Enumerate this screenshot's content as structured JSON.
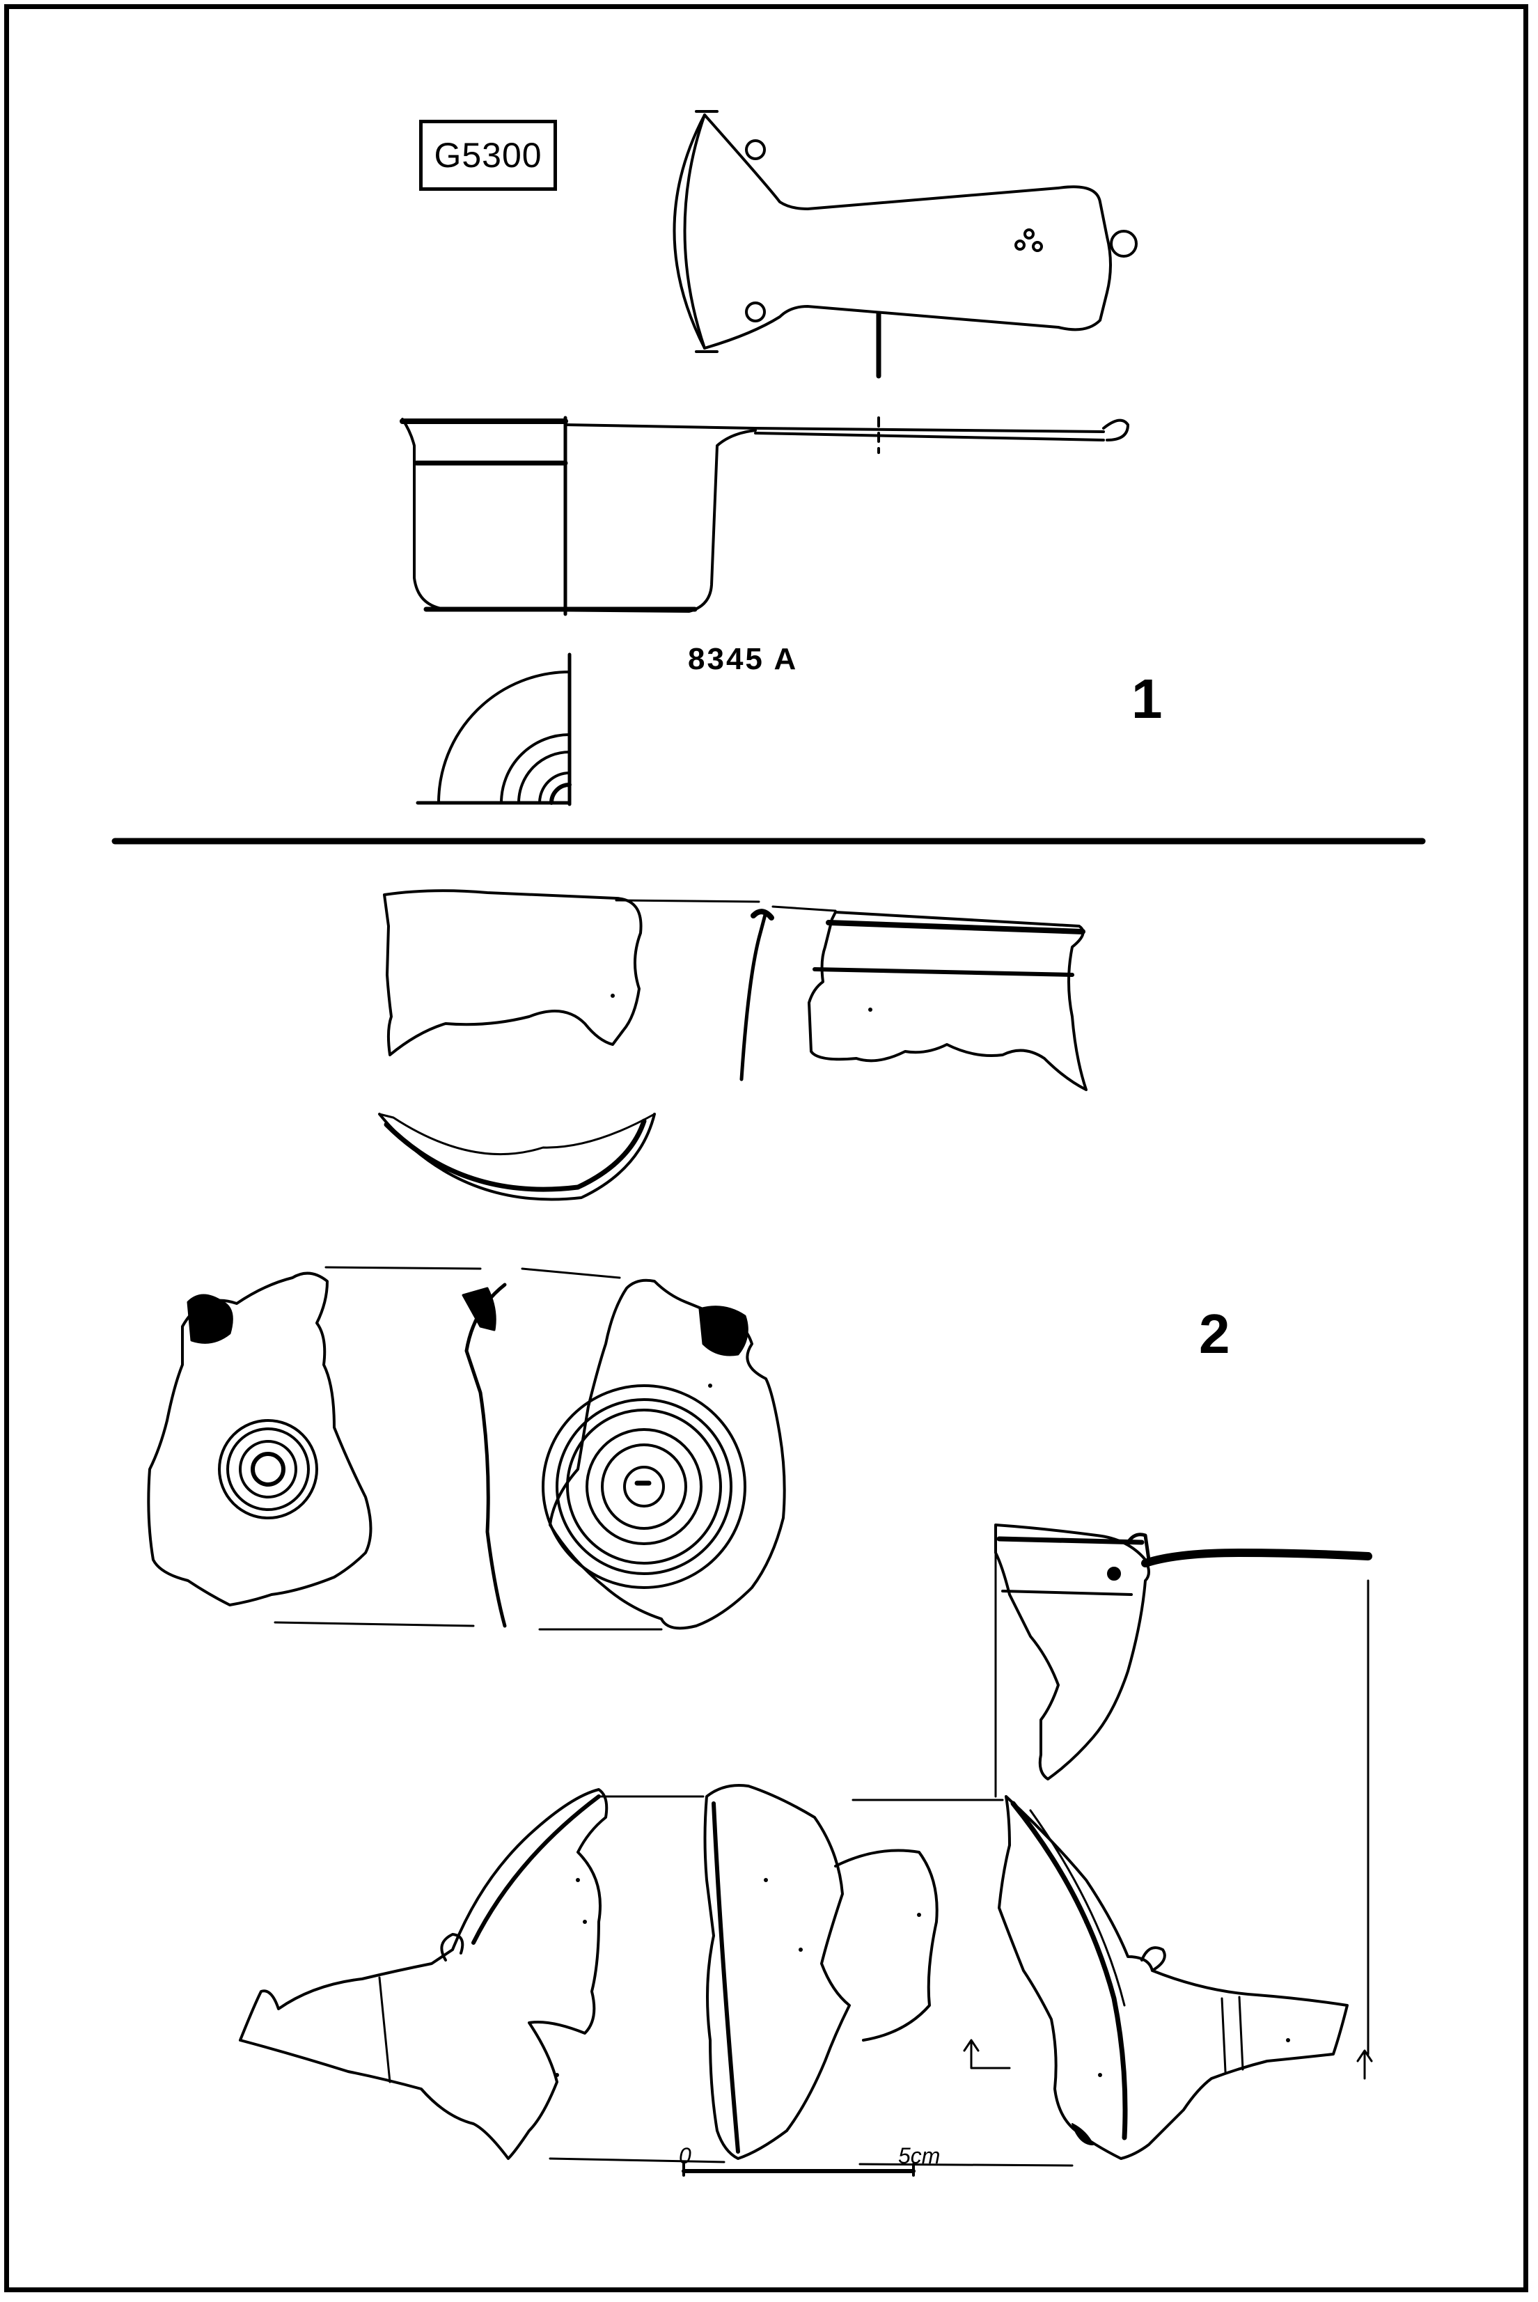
{
  "sheet": {
    "catalogue_code": "G5300",
    "inventory_number": "8345 A",
    "figure_1_label": "1",
    "figure_2_label": "2"
  },
  "scale_bar": {
    "start_label": "0",
    "end_label": "5cm"
  }
}
